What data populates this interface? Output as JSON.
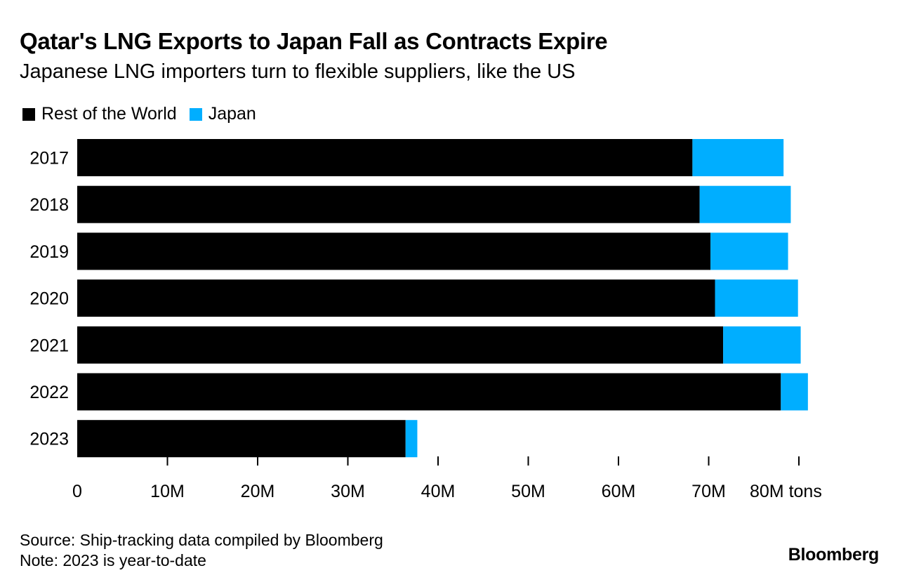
{
  "title": "Qatar's LNG Exports to Japan Fall as Contracts Expire",
  "subtitle": "Japanese LNG importers turn to flexible suppliers, like the US",
  "colors": {
    "rest_of_world": "#000000",
    "japan": "#00aeff",
    "axis": "#000000"
  },
  "chart_data": {
    "type": "bar",
    "orientation": "horizontal",
    "stacked": true,
    "categories": [
      "2017",
      "2018",
      "2019",
      "2020",
      "2021",
      "2022",
      "2023"
    ],
    "series": [
      {
        "name": "Rest of the World",
        "color": "#000000",
        "values": [
          68.2,
          69.0,
          70.2,
          70.7,
          71.6,
          78.0,
          36.4
        ]
      },
      {
        "name": "Japan",
        "color": "#00aeff",
        "values": [
          10.1,
          10.1,
          8.6,
          9.2,
          8.6,
          3.0,
          1.3
        ]
      }
    ],
    "xlim": [
      0,
      80
    ],
    "xticks": [
      0,
      10,
      20,
      30,
      40,
      50,
      60,
      70,
      80
    ],
    "xtick_labels": [
      "0",
      "10M",
      "20M",
      "30M",
      "40M",
      "50M",
      "60M",
      "70M",
      "80M tons"
    ],
    "legend": "top-left",
    "grid": false
  },
  "footer": {
    "source": "Source: Ship-tracking data compiled by Bloomberg",
    "note": "Note: 2023 is year-to-date"
  },
  "brand": "Bloomberg"
}
